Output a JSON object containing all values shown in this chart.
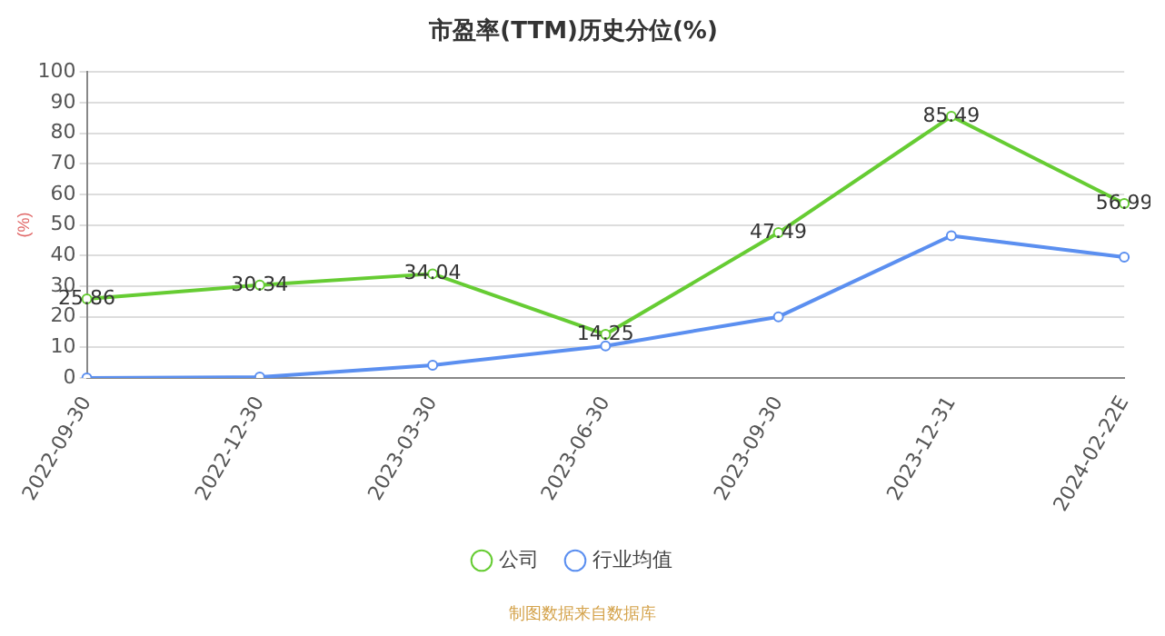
{
  "chart_data": {
    "type": "line",
    "title": "市盈率(TTM)历史分位(%)",
    "ylabel": "(%)",
    "categories": [
      "2022-09-30",
      "2022-12-30",
      "2023-03-30",
      "2023-06-30",
      "2023-09-30",
      "2023-12-31",
      "2024-02-22E"
    ],
    "series": [
      {
        "name": "公司",
        "color": "#66cc33",
        "values": [
          25.86,
          30.34,
          34.04,
          14.25,
          47.49,
          85.49,
          56.99
        ],
        "value_labels": [
          "25.86",
          "30.34",
          "34.04",
          "14.25",
          "47.49",
          "85.49",
          "56.99"
        ]
      },
      {
        "name": "行业均值",
        "color": "#5b8ff0",
        "values": [
          0,
          0.3,
          4.2,
          10.5,
          20,
          46.5,
          39.5
        ]
      }
    ],
    "ylim": [
      0,
      100
    ],
    "yticks": [
      0,
      10,
      20,
      30,
      40,
      50,
      60,
      70,
      80,
      90,
      100
    ],
    "grid": "y",
    "legend": "bottom",
    "marker": "circle",
    "line_style": "solid",
    "annotations": [
      "制图数据来自数据库"
    ]
  }
}
